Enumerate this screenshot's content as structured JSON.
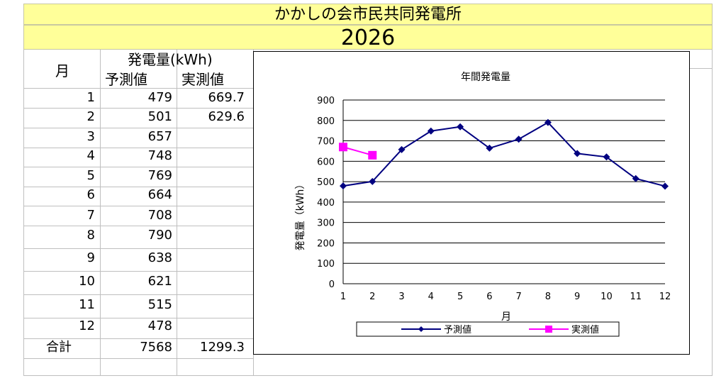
{
  "banner": {
    "title": "かかしの会市民共同発電所",
    "year": "2026"
  },
  "table": {
    "month_header": "月",
    "energy_header": "発電量(kWh)",
    "forecast_header": "予測値",
    "actual_header": "実測値",
    "rows": [
      {
        "month": "1",
        "forecast": "479",
        "actual": "669.7"
      },
      {
        "month": "2",
        "forecast": "501",
        "actual": "629.6"
      },
      {
        "month": "3",
        "forecast": "657",
        "actual": ""
      },
      {
        "month": "4",
        "forecast": "748",
        "actual": ""
      },
      {
        "month": "5",
        "forecast": "769",
        "actual": ""
      },
      {
        "month": "6",
        "forecast": "664",
        "actual": ""
      },
      {
        "month": "7",
        "forecast": "708",
        "actual": ""
      },
      {
        "month": "8",
        "forecast": "790",
        "actual": ""
      },
      {
        "month": "9",
        "forecast": "638",
        "actual": ""
      },
      {
        "month": "10",
        "forecast": "621",
        "actual": ""
      },
      {
        "month": "11",
        "forecast": "515",
        "actual": ""
      },
      {
        "month": "12",
        "forecast": "478",
        "actual": ""
      }
    ],
    "total_label": "合計",
    "total_forecast": "7568",
    "total_actual": "1299.3"
  },
  "chart_data": {
    "type": "line",
    "title": "年間発電量",
    "xlabel": "月",
    "ylabel": "発電量（kWh）",
    "categories": [
      "1",
      "2",
      "3",
      "4",
      "5",
      "6",
      "7",
      "8",
      "9",
      "10",
      "11",
      "12"
    ],
    "ylim": [
      0,
      900
    ],
    "yticks": [
      0,
      100,
      200,
      300,
      400,
      500,
      600,
      700,
      800,
      900
    ],
    "grid": true,
    "legend_position": "bottom",
    "series": [
      {
        "name": "予測値",
        "color": "#000080",
        "marker": "diamond",
        "values": [
          479,
          501,
          657,
          748,
          769,
          664,
          708,
          790,
          638,
          621,
          515,
          478
        ]
      },
      {
        "name": "実測値",
        "color": "#ff00ff",
        "marker": "square",
        "values": [
          669.7,
          629.6,
          null,
          null,
          null,
          null,
          null,
          null,
          null,
          null,
          null,
          null
        ]
      }
    ]
  }
}
